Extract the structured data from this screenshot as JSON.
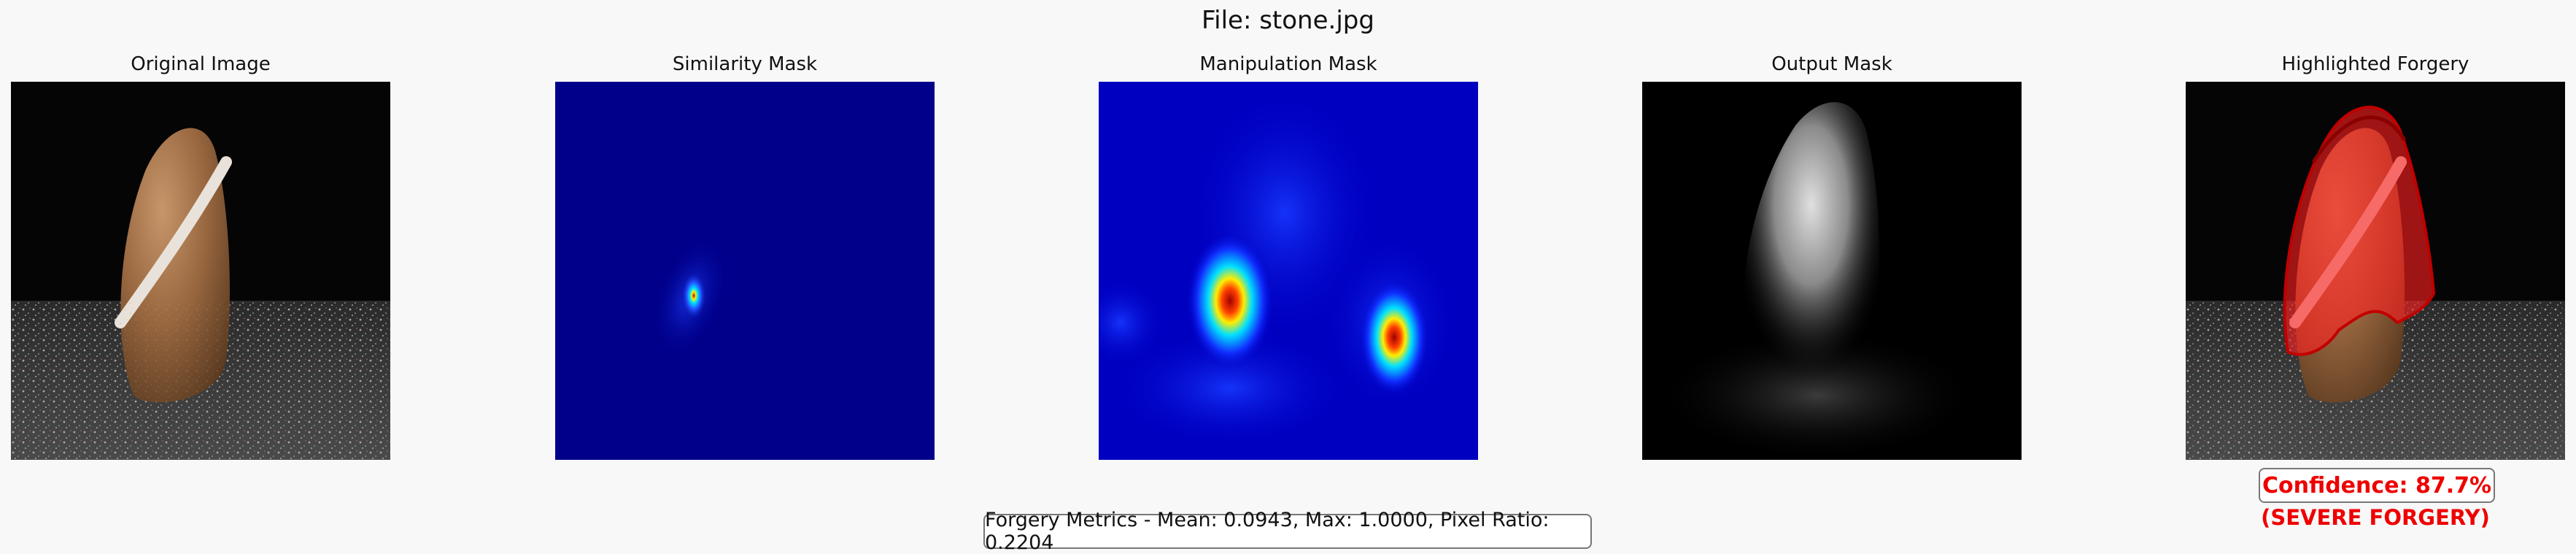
{
  "figure": {
    "title": "File: stone.jpg"
  },
  "panels": [
    {
      "title": "Original Image"
    },
    {
      "title": "Similarity Mask"
    },
    {
      "title": "Manipulation Mask"
    },
    {
      "title": "Output Mask"
    },
    {
      "title": "Highlighted Forgery"
    }
  ],
  "result": {
    "confidence_label": "Confidence: 87.7%",
    "severity_label": "(SEVERE FORGERY)"
  },
  "metrics": {
    "label": "Forgery Metrics - Mean: 0.0943, Max: 1.0000, Pixel Ratio: 0.2204"
  },
  "colors": {
    "background": "#f8f8f8",
    "alert": "#e00000",
    "colormap_low": "#00008b",
    "colormap_high": "#b00000"
  }
}
